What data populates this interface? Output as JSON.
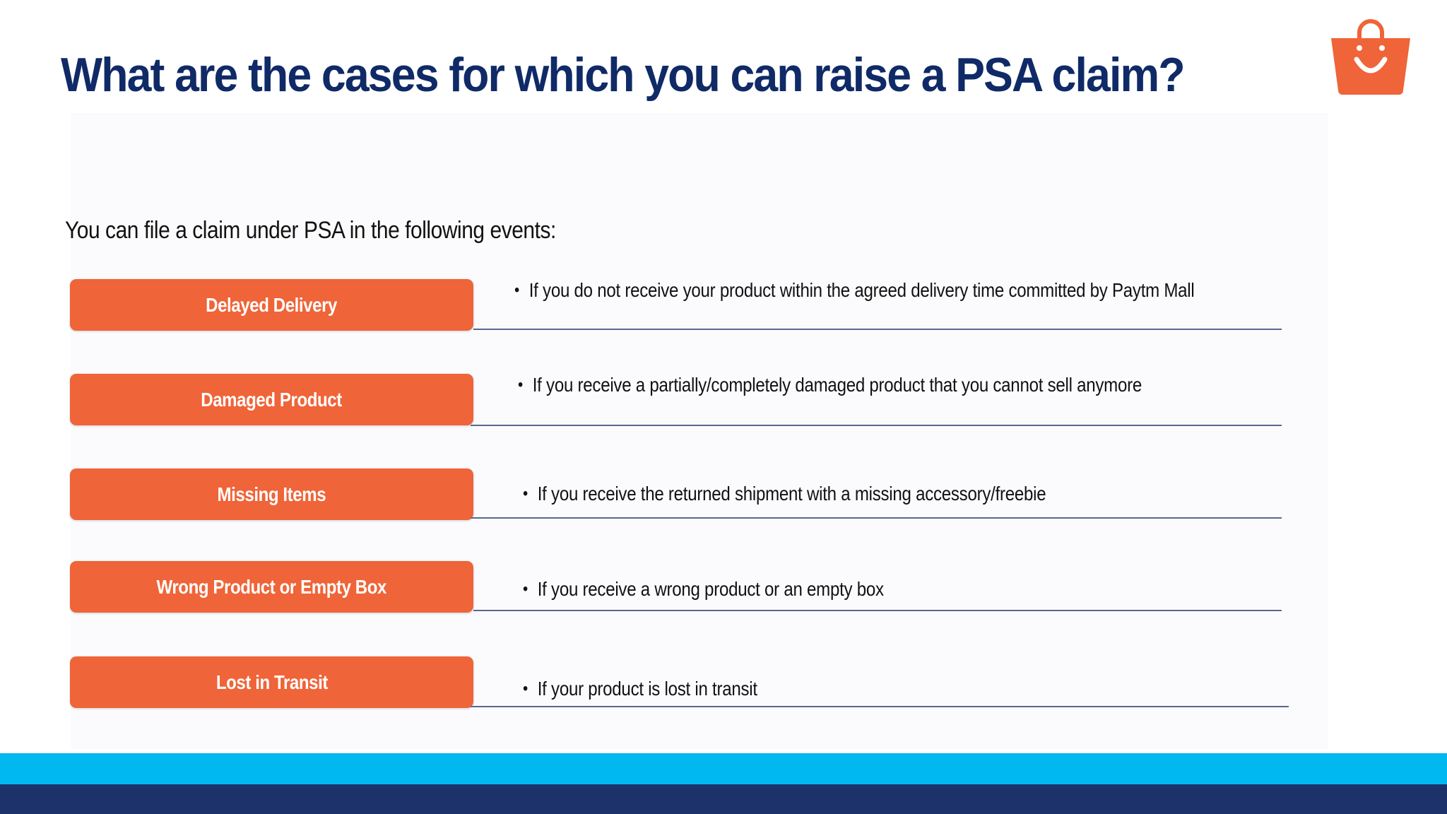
{
  "slide": {
    "title": "What are the cases for which you can raise a PSA claim?",
    "subtitle": "You can file a claim under PSA in the following events:",
    "logo_icon": "shopping-bag-smile-icon",
    "colors": {
      "title": "#0f2a66",
      "pill": "#ef6438",
      "band_light": "#00b8f0",
      "band_dark": "#1d316a"
    }
  },
  "cases": [
    {
      "label": "Delayed Delivery",
      "description": "If you do not receive your product within the agreed delivery time committed by Paytm Mall"
    },
    {
      "label": "Damaged Product",
      "description": "If you receive a partially/completely damaged product that you cannot sell anymore"
    },
    {
      "label": "Missing Items",
      "description": "If you receive the returned shipment with a missing accessory/freebie"
    },
    {
      "label": "Wrong Product or Empty Box",
      "description": "If you receive a wrong product or an empty box"
    },
    {
      "label": "Lost in Transit",
      "description": "If your product is lost in transit"
    }
  ]
}
